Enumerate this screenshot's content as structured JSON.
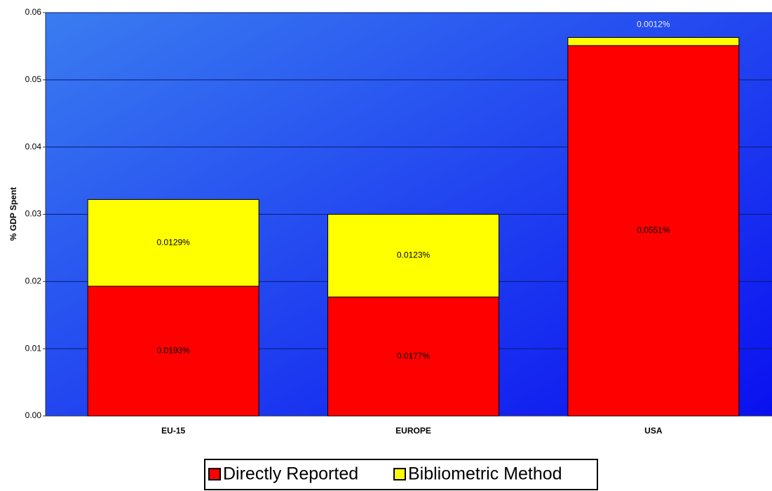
{
  "chart_data": {
    "type": "bar",
    "stacked": true,
    "y_label": "% GDP Spent",
    "categories": [
      "EU-15",
      "EUROPE",
      "USA"
    ],
    "series": [
      {
        "name": "Directly Reported",
        "color": "#ff0000",
        "values": [
          0.0193,
          0.0177,
          0.0551
        ],
        "value_labels": [
          "0.0193%",
          "0.0177%",
          "0.0551%"
        ]
      },
      {
        "name": "Bibliometric Method",
        "color": "#ffff00",
        "values": [
          0.0129,
          0.0123,
          0.0012
        ],
        "value_labels": [
          "0.0129%",
          "0.0123%",
          "0.0012%"
        ]
      }
    ],
    "ylim": [
      0,
      0.06
    ],
    "yticks": [
      {
        "value": 0,
        "label": "0.00"
      },
      0.01,
      0.02,
      0.03,
      0.04,
      0.05,
      0.06
    ],
    "grid": true
  }
}
